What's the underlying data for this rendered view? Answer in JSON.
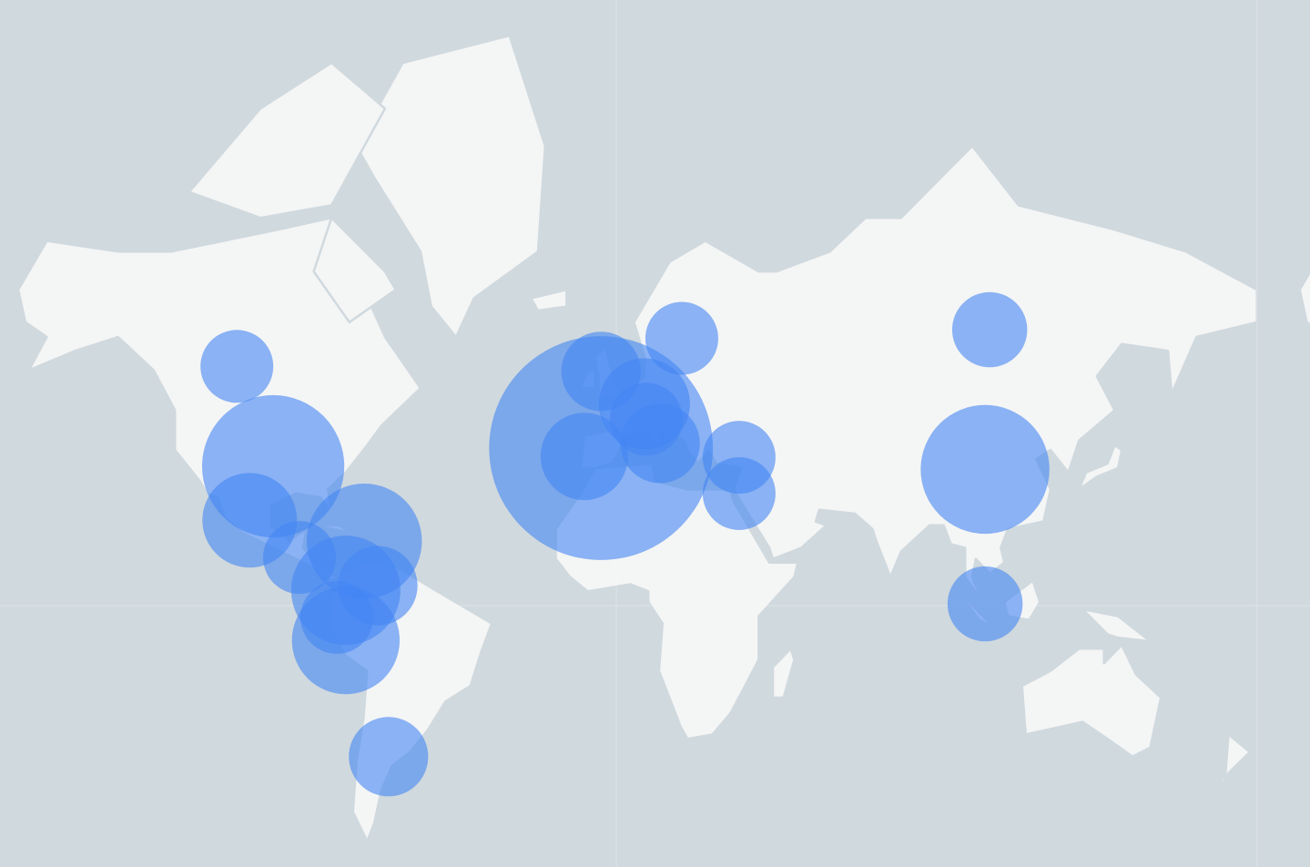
{
  "map": {
    "projection": "mercator",
    "colors": {
      "ocean": "#d0d9de",
      "land": "#f4f5f5",
      "border": "#d0d9de",
      "bubble": "#4285f4",
      "bubble_opacity": 0.6
    },
    "markers": [
      {
        "lat": 55.6,
        "lon": -106.6,
        "value": 16
      },
      {
        "lat": 36.4,
        "lon": -96.4,
        "value": 61
      },
      {
        "lat": 23.3,
        "lon": -103.0,
        "value": 27
      },
      {
        "lat": 13.4,
        "lon": -89.0,
        "value": 16
      },
      {
        "lat": 17.8,
        "lon": -70.8,
        "value": 40
      },
      {
        "lat": 4.3,
        "lon": -76.0,
        "value": 36
      },
      {
        "lat": 5.6,
        "lon": -67.0,
        "value": 19
      },
      {
        "lat": -3.3,
        "lon": -78.5,
        "value": 16
      },
      {
        "lat": -9.7,
        "lon": -76.0,
        "value": 35
      },
      {
        "lat": -39.0,
        "lon": -64.0,
        "value": 19
      },
      {
        "lat": 40.4,
        "lon": -4.3,
        "value": 151
      },
      {
        "lat": 54.8,
        "lon": -4.3,
        "value": 19
      },
      {
        "lat": 38.6,
        "lon": -9.0,
        "value": 23
      },
      {
        "lat": 49.2,
        "lon": 7.9,
        "value": 25
      },
      {
        "lat": 46.3,
        "lon": 8.4,
        "value": 16
      },
      {
        "lat": 41.4,
        "lon": 12.3,
        "value": 19
      },
      {
        "lat": 59.8,
        "lon": 18.4,
        "value": 16
      },
      {
        "lat": 38.4,
        "lon": 34.5,
        "value": 16
      },
      {
        "lat": 30.0,
        "lon": 34.5,
        "value": 16
      },
      {
        "lat": 61.0,
        "lon": 104.9,
        "value": 17
      },
      {
        "lat": 35.7,
        "lon": 103.6,
        "value": 50
      },
      {
        "lat": 0.5,
        "lon": 103.6,
        "value": 17
      }
    ]
  }
}
